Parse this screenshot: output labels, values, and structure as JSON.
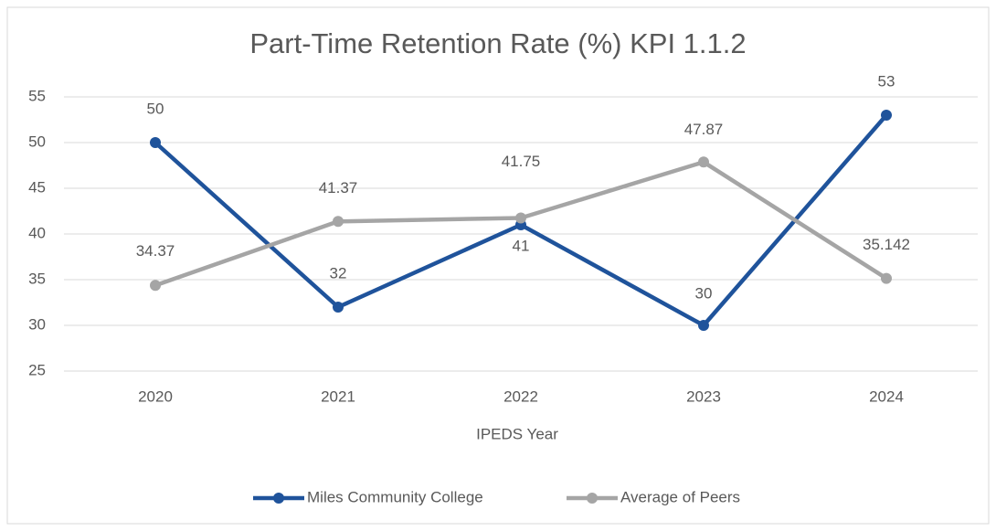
{
  "chart_data": {
    "type": "line",
    "title": "Part-Time Retention Rate (%) KPI 1.1.2",
    "x_label": "IPEDS Year",
    "categories": [
      "2020",
      "2021",
      "2022",
      "2023",
      "2024"
    ],
    "series": [
      {
        "name": "Miles Community College",
        "color": "#1f539b",
        "values": [
          50,
          32,
          41,
          30,
          53
        ]
      },
      {
        "name": "Average of Peers",
        "color": "#a5a5a5",
        "values": [
          34.37,
          41.37,
          41.75,
          47.87,
          35.142
        ]
      }
    ],
    "ylim": [
      25,
      55
    ],
    "yticks": [
      25,
      30,
      35,
      40,
      45,
      50,
      55
    ],
    "grid": true,
    "legend": "bottom"
  }
}
